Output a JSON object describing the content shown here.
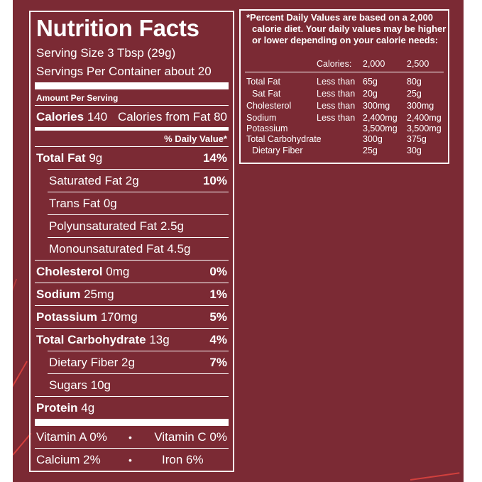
{
  "label": {
    "title": "Nutrition Facts",
    "serving_size": "Serving Size 3 Tbsp (29g)",
    "servings_per_container": "Servings Per Container about 20",
    "amount_per_serving": "Amount Per Serving",
    "calories_label": "Calories",
    "calories_value": "140",
    "calories_from_fat": "Calories from Fat 80",
    "daily_value_header": "% Daily Value*",
    "nutrients": [
      {
        "name": "Total Fat",
        "amount": "9g",
        "dv": "14%"
      },
      {
        "name": "Saturated Fat",
        "amount": "2g",
        "dv": "10%"
      },
      {
        "name": "Trans Fat",
        "amount": "0g",
        "dv": ""
      },
      {
        "name": "Polyunsaturated Fat",
        "amount": "2.5g",
        "dv": ""
      },
      {
        "name": "Monounsaturated Fat",
        "amount": "4.5g",
        "dv": ""
      },
      {
        "name": "Cholesterol",
        "amount": "0mg",
        "dv": "0%"
      },
      {
        "name": "Sodium",
        "amount": "25mg",
        "dv": "1%"
      },
      {
        "name": "Potassium",
        "amount": "170mg",
        "dv": "5%"
      },
      {
        "name": "Total Carbohydrate",
        "amount": "13g",
        "dv": "4%"
      },
      {
        "name": "Dietary Fiber",
        "amount": "2g",
        "dv": "7%"
      },
      {
        "name": "Sugars",
        "amount": "10g",
        "dv": ""
      },
      {
        "name": "Protein",
        "amount": "4g",
        "dv": ""
      }
    ],
    "vitamins": {
      "vitamin_a": "Vitamin A 0%",
      "vitamin_c": "Vitamin C 0%",
      "calcium": "Calcium 2%",
      "iron": "Iron 6%",
      "separator": "•"
    }
  },
  "footnote": {
    "lines": [
      "*Percent Daily Values are based on a 2,000",
      "calorie diet. Your daily values may be higher",
      "or lower depending on your calorie needs:"
    ],
    "header": {
      "label": "Calories:",
      "col1": "2,000",
      "col2": "2,500"
    },
    "rows": [
      {
        "name": "Total Fat",
        "qual": "Less than",
        "v1": "65g",
        "v2": "80g"
      },
      {
        "name": "Sat Fat",
        "qual": "Less than",
        "v1": "20g",
        "v2": "25g"
      },
      {
        "name": "Cholesterol",
        "qual": "Less than",
        "v1": "300mg",
        "v2": "300mg"
      },
      {
        "name": "Sodium",
        "qual": "Less than",
        "v1": "2,400mg",
        "v2": "2,400mg"
      },
      {
        "name": "Potassium",
        "qual": "",
        "v1": "3,500mg",
        "v2": "3,500mg"
      },
      {
        "name": "Total Carbohydrate",
        "qual": "",
        "v1": "300g",
        "v2": "375g"
      },
      {
        "name": "Dietary Fiber",
        "qual": "",
        "v1": "25g",
        "v2": "30g"
      }
    ]
  },
  "colors": {
    "background": "#7b2a34",
    "text": "#ffffff",
    "accent_streak": "#e0443f"
  }
}
